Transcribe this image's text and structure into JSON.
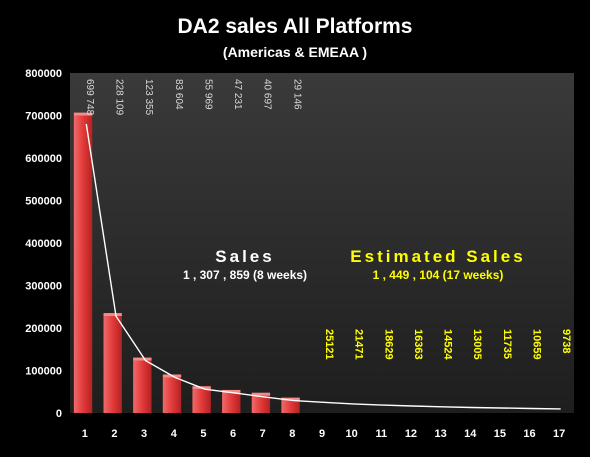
{
  "chart_data": {
    "type": "bar",
    "title": "DA2  sales  All Platforms",
    "subtitle": "(Americas & EMEAA )",
    "xlabel": "",
    "ylabel": "",
    "ylim": [
      0,
      800000
    ],
    "yticks": [
      "0",
      "100000",
      "200000",
      "300000",
      "400000",
      "500000",
      "600000",
      "700000",
      "800000"
    ],
    "grid": false,
    "categories": [
      "1",
      "2",
      "3",
      "4",
      "5",
      "6",
      "7",
      "8",
      "9",
      "10",
      "11",
      "12",
      "13",
      "14",
      "15",
      "16",
      "17"
    ],
    "sales_values": [
      699748,
      228109,
      123355,
      83604,
      55969,
      47231,
      40697,
      29146
    ],
    "sales_labels": [
      "699 748",
      "228 109",
      "123 355",
      "83 604",
      "55 969",
      "47 231",
      "40 697",
      "29 146"
    ],
    "estimated_values": [
      25121,
      21471,
      18629,
      16363,
      14524,
      13005,
      11735,
      10659,
      9738
    ],
    "estimated_labels": [
      "25121",
      "21471",
      "18629",
      "16363",
      "14524",
      "13005",
      "11735",
      "10659",
      "9738"
    ],
    "trend_values": [
      680000,
      228109,
      123355,
      83604,
      55969,
      47231,
      38000,
      29146,
      25121,
      21471,
      18629,
      16363,
      14524,
      13005,
      11735,
      10659,
      9738
    ],
    "annotations": {
      "sales_title": "Sales",
      "sales_total": "1 , 307 , 859  (8 weeks)",
      "estimated_title": "Estimated Sales",
      "estimated_total": "1 , 449 , 104  (17 weeks)"
    },
    "colors": {
      "bar": "#e23a3a",
      "plot_bg": "#2a2a2a",
      "estimated_text": "#ffff00",
      "trend": "#ffffff",
      "text": "#ffffff"
    }
  }
}
